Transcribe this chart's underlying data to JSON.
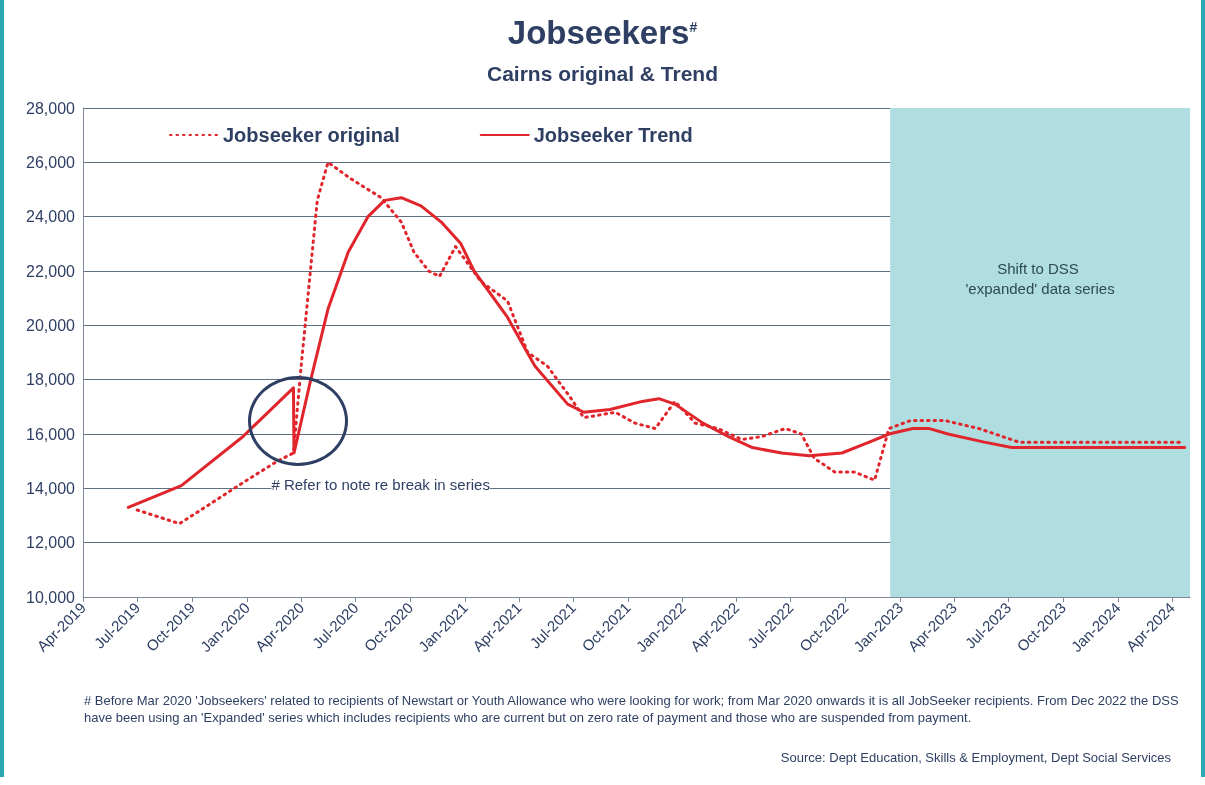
{
  "chart_data": {
    "type": "line",
    "title": "Jobseekers$^{#}$",
    "subtitle": "Cairns original & Trend",
    "series": [
      {
        "name": "Jobseeker original",
        "color": "#e0262c",
        "line_style": "dotted",
        "x": [
          "2019-07-01",
          "2019-09-10",
          "2020-01-01",
          "2020-02-21",
          "2020-03-19",
          "2020-04-01",
          "2020-04-28",
          "2020-05-16",
          "2020-06-23",
          "2020-08-13",
          "2020-09-16",
          "2020-10-07",
          "2020-11-01",
          "2020-11-19",
          "2020-12-16",
          "2021-01-28",
          "2021-03-13",
          "2021-04-16",
          "2021-05-19",
          "2021-06-28",
          "2021-07-19",
          "2021-09-10",
          "2021-10-13",
          "2021-11-16",
          "2021-12-19",
          "2022-01-22",
          "2022-03-01",
          "2022-04-10",
          "2022-05-13",
          "2022-06-22",
          "2022-07-19",
          "2022-08-10",
          "2022-09-13",
          "2022-10-16",
          "2022-11-19",
          "2022-12-13",
          "2023-01-19",
          "2023-03-16",
          "2023-05-13",
          "2023-07-19",
          "2024-04-19"
        ],
        "values": [
          13200,
          12700,
          14300,
          15000,
          15300,
          18500,
          24600,
          26000,
          25400,
          24700,
          23800,
          22700,
          22000,
          21800,
          22900,
          21600,
          20900,
          19000,
          18500,
          17300,
          16600,
          16800,
          16400,
          16200,
          17200,
          16400,
          16200,
          15800,
          15900,
          16200,
          16000,
          15100,
          14600,
          14600,
          14300,
          16200,
          16500,
          16500,
          16200,
          15700,
          15700
        ]
      },
      {
        "name": "Jobseeker Trend",
        "color": "#e0262c",
        "line_style": "solid",
        "x": [
          "2019-06-16",
          "2019-09-13",
          "2019-12-25",
          "2020-03-19",
          "2020-03-20",
          "2020-04-16",
          "2020-05-16",
          "2020-06-19",
          "2020-07-22",
          "2020-08-19",
          "2020-09-16",
          "2020-10-19",
          "2020-11-22",
          "2020-12-25",
          "2021-01-16",
          "2021-03-13",
          "2021-04-28",
          "2021-06-22",
          "2021-07-19",
          "2021-09-01",
          "2021-10-25",
          "2021-11-22",
          "2021-12-19",
          "2022-02-04",
          "2022-03-19",
          "2022-04-28",
          "2022-06-16",
          "2022-08-01",
          "2022-09-25",
          "2022-11-10",
          "2022-12-13",
          "2023-01-22",
          "2023-02-19",
          "2023-03-22",
          "2023-05-22",
          "2023-07-07",
          "2023-11-25",
          "2023-12-28",
          "2024-03-01",
          "2024-04-22"
        ],
        "values": [
          13300,
          14100,
          15900,
          17700,
          15300,
          17900,
          20600,
          22700,
          24000,
          24600,
          24700,
          24400,
          23800,
          23000,
          22000,
          20300,
          18500,
          17100,
          16800,
          16900,
          17200,
          17300,
          17100,
          16400,
          15900,
          15500,
          15300,
          15200,
          15300,
          15700,
          16000,
          16200,
          16200,
          16000,
          15700,
          15500,
          15500,
          15500,
          15500,
          15500
        ]
      }
    ],
    "xlim": [
      "2019-04-01",
      "2024-05-01"
    ],
    "xticks": [
      {
        "value": "2019-04-01",
        "label": "Apr-2019"
      },
      {
        "value": "2019-07-01",
        "label": "Jul-2019"
      },
      {
        "value": "2019-10-01",
        "label": "Oct-2019"
      },
      {
        "value": "2020-01-01",
        "label": "Jan-2020"
      },
      {
        "value": "2020-04-01",
        "label": "Apr-2020"
      },
      {
        "value": "2020-07-01",
        "label": "Jul-2020"
      },
      {
        "value": "2020-10-01",
        "label": "Oct-2020"
      },
      {
        "value": "2021-01-01",
        "label": "Jan-2021"
      },
      {
        "value": "2021-04-01",
        "label": "Apr-2021"
      },
      {
        "value": "2021-07-01",
        "label": "Jul-2021"
      },
      {
        "value": "2021-10-01",
        "label": "Oct-2021"
      },
      {
        "value": "2022-01-01",
        "label": "Jan-2022"
      },
      {
        "value": "2022-04-01",
        "label": "Apr-2022"
      },
      {
        "value": "2022-07-01",
        "label": "Jul-2022"
      },
      {
        "value": "2022-10-01",
        "label": "Oct-2022"
      },
      {
        "value": "2023-01-01",
        "label": "Jan-2023"
      },
      {
        "value": "2023-04-01",
        "label": "Apr-2023"
      },
      {
        "value": "2023-07-01",
        "label": "Jul-2023"
      },
      {
        "value": "2023-10-01",
        "label": "Oct-2023"
      },
      {
        "value": "2024-01-01",
        "label": "Jan-2024"
      },
      {
        "value": "2024-04-01",
        "label": "Apr-2024"
      }
    ],
    "ylim": [
      10000,
      28000
    ],
    "yticks": [
      {
        "value": 10000,
        "label": "10,000"
      },
      {
        "value": 12000,
        "label": "12,000"
      },
      {
        "value": 14000,
        "label": "14,000"
      },
      {
        "value": 16000,
        "label": "16,000"
      },
      {
        "value": 18000,
        "label": "18,000"
      },
      {
        "value": 20000,
        "label": "20,000"
      },
      {
        "value": 22000,
        "label": "22,000"
      },
      {
        "value": 24000,
        "label": "24,000"
      },
      {
        "value": 26000,
        "label": "26,000"
      },
      {
        "value": 28000,
        "label": "28,000"
      }
    ],
    "grid": "y",
    "legend": "top left",
    "marker": "none",
    "bands": [
      {
        "axis": "x",
        "from": "2022-12-15",
        "to": "2024-05-01",
        "label": "Shift to DSS 'expanded' data series",
        "color": "#b0dde0"
      }
    ],
    "annotations": [
      "# Refer to note re break in series",
      "# Before Mar 2020 'Jobseekers' related to recipients of Newstart or Youth Allowance who were looking for work; from Mar 2020 onwards it is all JobSeeker recipients. From Dec 2022 the DSS have been using an 'Expanded' series which includes recipients who are current but on zero rate of payment and those who are suspended from payment.",
      "Source: Dept Education, Skills & Employment, Dept Social Services"
    ]
  }
}
